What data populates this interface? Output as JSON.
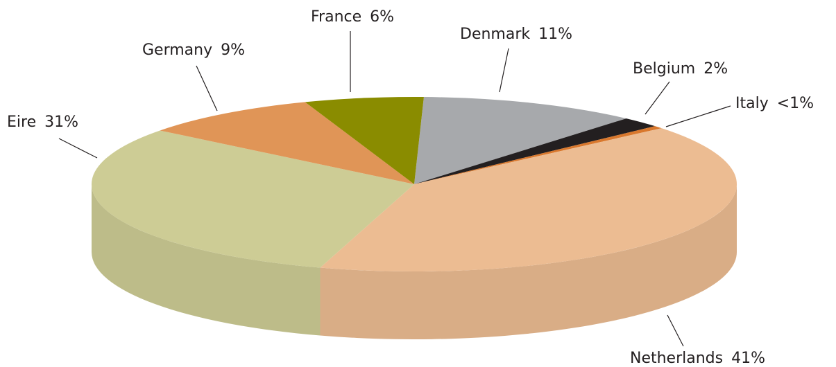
{
  "chart_data": {
    "type": "pie",
    "categories": [
      "Denmark",
      "Belgium",
      "Italy",
      "Netherlands",
      "Eire",
      "Germany",
      "France"
    ],
    "values": [
      11,
      2,
      0.5,
      41,
      31,
      9,
      6
    ],
    "value_labels": [
      "11%",
      "2%",
      "<1%",
      "41%",
      "31%",
      "9%",
      "6%"
    ],
    "colors": [
      "#a7a9ac",
      "#231f20",
      "#d9782d",
      "#ecbc92",
      "#cdcc95",
      "#e09557",
      "#8a8c00"
    ]
  }
}
